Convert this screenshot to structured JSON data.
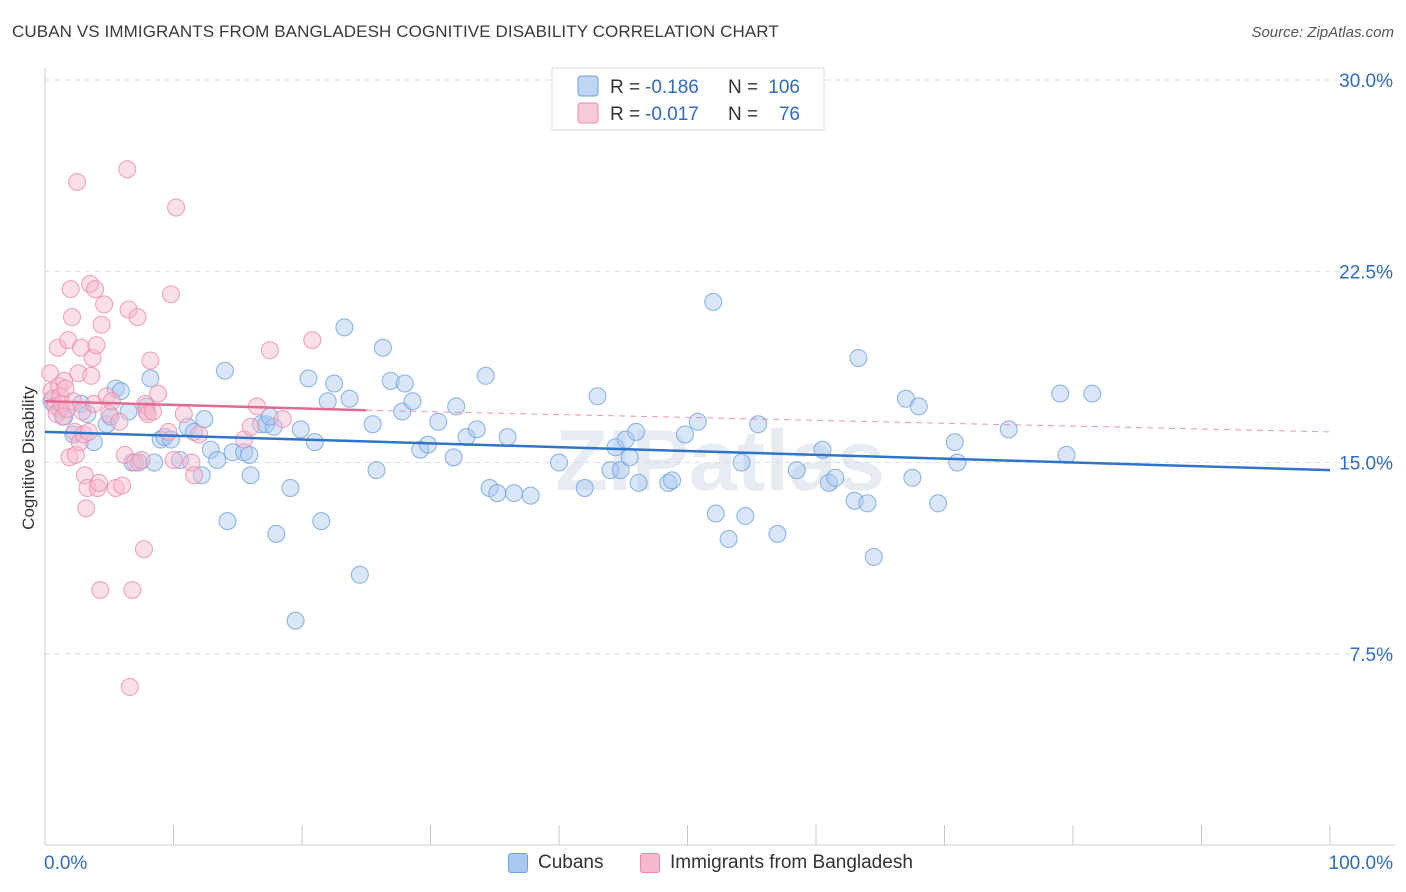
{
  "header": {
    "title": "CUBAN VS IMMIGRANTS FROM BANGLADESH COGNITIVE DISABILITY CORRELATION CHART",
    "source": "Source: ZipAtlas.com"
  },
  "watermark": "ZIPatlas",
  "legend_top": {
    "rows": [
      {
        "r_label": "R =",
        "r_value": "-0.186",
        "n_label": "N =",
        "n_value": "106"
      },
      {
        "r_label": "R =",
        "r_value": "-0.017",
        "n_label": "N =",
        "n_value": "76"
      }
    ]
  },
  "legend_bottom": {
    "items": [
      "Cubans",
      "Immigrants from Bangladesh"
    ]
  },
  "colors": {
    "blue_fill": "#a8c8f0",
    "blue_stroke": "#6f9fdc",
    "blue_line": "#2f74c8",
    "pink_fill": "#f6b8cc",
    "pink_stroke": "#e98aaa",
    "pink_line": "#e26a92",
    "value_text": "#2f6cc0",
    "grid": "#d9dde4"
  },
  "chart_data": {
    "type": "scatter",
    "title": "CUBAN VS IMMIGRANTS FROM BANGLADESH COGNITIVE DISABILITY CORRELATION CHART",
    "xlabel": "",
    "ylabel": "Cognitive Disability",
    "xlim": [
      0,
      100
    ],
    "ylim": [
      0,
      30
    ],
    "x_tick_labels": [
      "0.0%",
      "100.0%"
    ],
    "y_ticks": [
      7.5,
      15.0,
      22.5,
      30.0
    ],
    "y_tick_labels": [
      "7.5%",
      "15.0%",
      "22.5%",
      "30.0%"
    ],
    "grid": true,
    "legend_position": "top-center",
    "series": [
      {
        "name": "Cubans",
        "r": -0.186,
        "n": 106,
        "trend": {
          "x0": 0,
          "y0": 16.2,
          "x1": 100,
          "y1": 14.7
        },
        "points": [
          [
            0.5,
            17.4
          ],
          [
            1.2,
            17.1
          ],
          [
            1.5,
            16.8
          ],
          [
            2.2,
            16.1
          ],
          [
            2.8,
            17.3
          ],
          [
            3.3,
            16.9
          ],
          [
            3.8,
            15.8
          ],
          [
            4.8,
            16.5
          ],
          [
            5.1,
            16.8
          ],
          [
            5.5,
            17.9
          ],
          [
            5.9,
            17.8
          ],
          [
            6.5,
            17.0
          ],
          [
            6.8,
            15.0
          ],
          [
            7.3,
            15.0
          ],
          [
            7.9,
            17.2
          ],
          [
            8.2,
            18.3
          ],
          [
            8.5,
            15.0
          ],
          [
            9.0,
            15.9
          ],
          [
            9.3,
            16.0
          ],
          [
            9.8,
            15.9
          ],
          [
            10.5,
            15.1
          ],
          [
            11.1,
            16.4
          ],
          [
            11.6,
            16.2
          ],
          [
            12.2,
            14.5
          ],
          [
            12.4,
            16.7
          ],
          [
            12.9,
            15.5
          ],
          [
            13.4,
            15.1
          ],
          [
            14.0,
            18.6
          ],
          [
            14.2,
            12.7
          ],
          [
            14.6,
            15.4
          ],
          [
            15.5,
            15.4
          ],
          [
            15.9,
            15.3
          ],
          [
            16.0,
            14.5
          ],
          [
            16.8,
            16.5
          ],
          [
            17.2,
            16.5
          ],
          [
            17.8,
            16.4
          ],
          [
            17.5,
            16.8
          ],
          [
            18.0,
            12.2
          ],
          [
            19.1,
            14.0
          ],
          [
            19.5,
            8.8
          ],
          [
            19.9,
            16.3
          ],
          [
            20.5,
            18.3
          ],
          [
            21.0,
            15.8
          ],
          [
            21.5,
            12.7
          ],
          [
            22.0,
            17.4
          ],
          [
            22.5,
            18.1
          ],
          [
            23.3,
            20.3
          ],
          [
            23.7,
            17.5
          ],
          [
            24.5,
            10.6
          ],
          [
            25.5,
            16.5
          ],
          [
            25.8,
            14.7
          ],
          [
            26.3,
            19.5
          ],
          [
            26.9,
            18.2
          ],
          [
            28.0,
            18.1
          ],
          [
            27.8,
            17.0
          ],
          [
            28.6,
            17.4
          ],
          [
            29.2,
            15.5
          ],
          [
            29.8,
            15.7
          ],
          [
            30.6,
            16.6
          ],
          [
            31.8,
            15.2
          ],
          [
            32.0,
            17.2
          ],
          [
            32.8,
            16.0
          ],
          [
            33.6,
            16.3
          ],
          [
            34.3,
            18.4
          ],
          [
            34.6,
            14.0
          ],
          [
            35.2,
            13.8
          ],
          [
            36.0,
            16.0
          ],
          [
            36.5,
            13.8
          ],
          [
            37.8,
            13.7
          ],
          [
            40.0,
            15.0
          ],
          [
            42.0,
            14.0
          ],
          [
            43.0,
            17.6
          ],
          [
            44.0,
            14.7
          ],
          [
            44.4,
            15.6
          ],
          [
            44.8,
            14.7
          ],
          [
            45.2,
            15.9
          ],
          [
            45.5,
            15.2
          ],
          [
            46.0,
            16.2
          ],
          [
            46.2,
            14.2
          ],
          [
            48.5,
            14.2
          ],
          [
            48.8,
            14.3
          ],
          [
            49.8,
            16.1
          ],
          [
            50.8,
            16.6
          ],
          [
            52.0,
            21.3
          ],
          [
            52.2,
            13.0
          ],
          [
            53.2,
            12.0
          ],
          [
            54.2,
            15.0
          ],
          [
            54.5,
            12.9
          ],
          [
            55.5,
            16.5
          ],
          [
            57.0,
            12.2
          ],
          [
            58.5,
            14.7
          ],
          [
            60.5,
            15.5
          ],
          [
            61.0,
            14.2
          ],
          [
            61.5,
            14.4
          ],
          [
            63.0,
            13.5
          ],
          [
            63.3,
            19.1
          ],
          [
            64.0,
            13.4
          ],
          [
            64.5,
            11.3
          ],
          [
            67.0,
            17.5
          ],
          [
            67.5,
            14.4
          ],
          [
            68.0,
            17.2
          ],
          [
            69.5,
            13.4
          ],
          [
            70.8,
            15.8
          ],
          [
            71.0,
            15.0
          ],
          [
            75.0,
            16.3
          ],
          [
            79.0,
            17.7
          ],
          [
            79.5,
            15.3
          ],
          [
            81.5,
            17.7
          ]
        ]
      },
      {
        "name": "Immigrants from Bangladesh",
        "r": -0.017,
        "n": 76,
        "trend": {
          "x0": 0,
          "y0": 17.4,
          "x1": 25,
          "y1": 17.05,
          "dash_to_x": 100,
          "dash_to_y": 16.2
        },
        "points": [
          [
            0.4,
            18.5
          ],
          [
            0.5,
            17.8
          ],
          [
            0.6,
            17.5
          ],
          [
            0.8,
            17.2
          ],
          [
            0.9,
            16.9
          ],
          [
            1.0,
            19.5
          ],
          [
            1.1,
            18.0
          ],
          [
            1.2,
            17.6
          ],
          [
            1.3,
            17.3
          ],
          [
            1.4,
            16.8
          ],
          [
            1.5,
            18.2
          ],
          [
            1.6,
            17.9
          ],
          [
            1.7,
            17.1
          ],
          [
            1.8,
            19.8
          ],
          [
            1.9,
            15.2
          ],
          [
            2.0,
            21.8
          ],
          [
            2.1,
            20.7
          ],
          [
            2.2,
            17.4
          ],
          [
            2.3,
            16.2
          ],
          [
            2.4,
            15.3
          ],
          [
            2.5,
            26.0
          ],
          [
            2.6,
            18.5
          ],
          [
            2.7,
            15.8
          ],
          [
            2.8,
            19.5
          ],
          [
            2.9,
            17.0
          ],
          [
            3.0,
            16.1
          ],
          [
            3.1,
            14.5
          ],
          [
            3.2,
            13.2
          ],
          [
            3.3,
            14.0
          ],
          [
            3.4,
            16.2
          ],
          [
            3.5,
            22.0
          ],
          [
            3.6,
            18.4
          ],
          [
            3.7,
            19.1
          ],
          [
            3.8,
            17.3
          ],
          [
            3.9,
            21.8
          ],
          [
            4.0,
            19.6
          ],
          [
            4.1,
            14.0
          ],
          [
            4.2,
            14.2
          ],
          [
            4.3,
            10.0
          ],
          [
            4.4,
            20.4
          ],
          [
            4.6,
            21.2
          ],
          [
            4.8,
            17.6
          ],
          [
            5.0,
            16.9
          ],
          [
            5.2,
            17.4
          ],
          [
            5.5,
            14.0
          ],
          [
            5.8,
            16.6
          ],
          [
            6.0,
            14.1
          ],
          [
            6.2,
            15.3
          ],
          [
            6.4,
            26.5
          ],
          [
            6.5,
            21.0
          ],
          [
            6.6,
            6.2
          ],
          [
            6.8,
            10.0
          ],
          [
            7.0,
            15.0
          ],
          [
            7.2,
            20.7
          ],
          [
            7.5,
            15.1
          ],
          [
            7.7,
            11.6
          ],
          [
            7.8,
            17.3
          ],
          [
            7.9,
            17.0
          ],
          [
            8.0,
            16.9
          ],
          [
            8.2,
            19.0
          ],
          [
            8.4,
            17.0
          ],
          [
            8.8,
            17.7
          ],
          [
            9.6,
            16.2
          ],
          [
            9.8,
            21.6
          ],
          [
            10.0,
            15.1
          ],
          [
            10.2,
            25.0
          ],
          [
            10.8,
            16.9
          ],
          [
            11.4,
            15.0
          ],
          [
            11.6,
            14.5
          ],
          [
            12.0,
            16.1
          ],
          [
            15.5,
            15.9
          ],
          [
            16.0,
            16.4
          ],
          [
            16.5,
            17.2
          ],
          [
            17.5,
            19.4
          ],
          [
            18.5,
            16.7
          ],
          [
            20.8,
            19.8
          ]
        ]
      }
    ]
  }
}
